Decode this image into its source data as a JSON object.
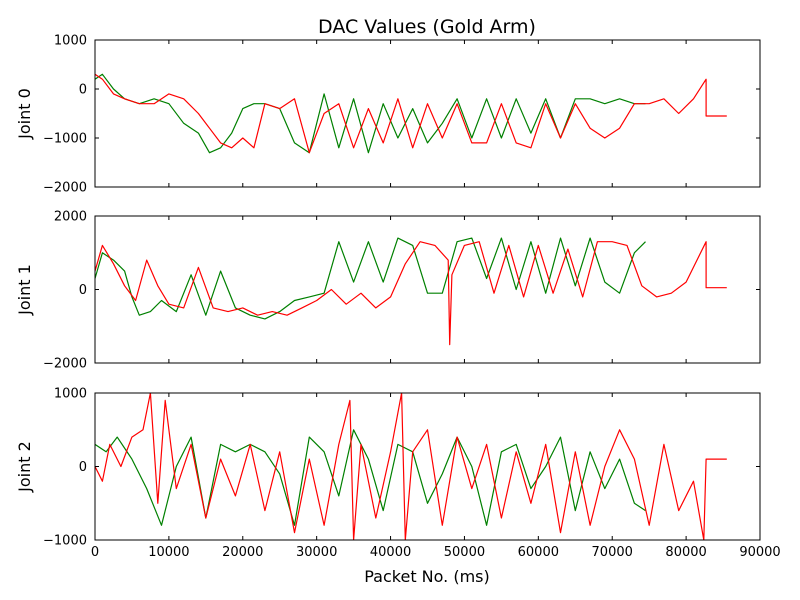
{
  "chart_data": {
    "type": "line",
    "title": "DAC Values (Gold Arm)",
    "xlabel": "Packet No. (ms)",
    "xlim": [
      0,
      90000
    ],
    "x_ticks": [
      0,
      10000,
      20000,
      30000,
      40000,
      50000,
      60000,
      70000,
      80000,
      90000
    ],
    "x_tick_labels": [
      "0",
      "10000",
      "20000",
      "30000",
      "40000",
      "50000",
      "60000",
      "70000",
      "80000",
      "90000"
    ],
    "series_colors": {
      "green": "#008000",
      "red": "#ff0000"
    },
    "panels": [
      {
        "ylabel": "Joint 0",
        "ylim": [
          -2000,
          1000
        ],
        "y_ticks": [
          1000,
          0,
          -1000,
          -2000
        ],
        "y_tick_labels": [
          "1000",
          "0",
          "−1000",
          "−2000"
        ],
        "series": [
          {
            "color": "#008000",
            "x": [
              0,
              1000,
              2500,
              4000,
              6000,
              8000,
              10000,
              12000,
              14000,
              15500,
              17000,
              18500,
              20000,
              21500,
              23000,
              25000,
              27000,
              29000,
              31000,
              33000,
              35000,
              37000,
              39000,
              41000,
              43000,
              45000,
              47000,
              49000,
              51000,
              53000,
              55000,
              57000,
              59000,
              61000,
              63000,
              65000,
              67000,
              69000,
              71000,
              73000,
              74500
            ],
            "y": [
              200,
              300,
              0,
              -200,
              -300,
              -200,
              -300,
              -700,
              -900,
              -1300,
              -1200,
              -900,
              -400,
              -300,
              -300,
              -400,
              -1100,
              -1300,
              -100,
              -1200,
              -200,
              -1300,
              -300,
              -1000,
              -400,
              -1100,
              -700,
              -200,
              -1000,
              -200,
              -1000,
              -200,
              -900,
              -200,
              -1000,
              -200,
              -200,
              -300,
              -200,
              -300,
              -300
            ]
          },
          {
            "color": "#ff0000",
            "x": [
              0,
              1000,
              2500,
              4000,
              6000,
              8000,
              10000,
              12000,
              14000,
              15500,
              17000,
              18500,
              20000,
              21500,
              23000,
              25000,
              27000,
              29000,
              31000,
              33000,
              35000,
              37000,
              39000,
              41000,
              43000,
              45000,
              47000,
              49000,
              51000,
              53000,
              55000,
              57000,
              59000,
              61000,
              63000,
              65000,
              67000,
              69000,
              71000,
              73000,
              75000,
              77000,
              79000,
              81000,
              82700,
              82700,
              85500
            ],
            "y": [
              300,
              200,
              -100,
              -200,
              -300,
              -300,
              -100,
              -200,
              -500,
              -800,
              -1100,
              -1200,
              -1000,
              -1200,
              -300,
              -400,
              -200,
              -1300,
              -500,
              -300,
              -1200,
              -400,
              -1100,
              -200,
              -1200,
              -300,
              -1000,
              -300,
              -1100,
              -1100,
              -300,
              -1100,
              -1200,
              -300,
              -1000,
              -300,
              -800,
              -1000,
              -800,
              -300,
              -300,
              -200,
              -500,
              -200,
              200,
              -550,
              -550
            ]
          }
        ]
      },
      {
        "ylabel": "Joint 1",
        "ylim": [
          -2000,
          2000
        ],
        "y_ticks": [
          2000,
          0,
          -2000
        ],
        "y_tick_labels": [
          "2000",
          "0",
          "−2000"
        ],
        "series": [
          {
            "color": "#008000",
            "x": [
              0,
              1000,
              2500,
              4000,
              5000,
              6000,
              7500,
              9000,
              11000,
              13000,
              15000,
              17000,
              19000,
              21000,
              23000,
              25000,
              27000,
              29000,
              31000,
              33000,
              35000,
              37000,
              39000,
              41000,
              43000,
              45000,
              47000,
              49000,
              51000,
              53000,
              55000,
              57000,
              59000,
              61000,
              63000,
              65000,
              67000,
              69000,
              71000,
              73000,
              74500
            ],
            "y": [
              300,
              1000,
              800,
              500,
              -200,
              -700,
              -600,
              -300,
              -600,
              400,
              -700,
              500,
              -500,
              -700,
              -800,
              -600,
              -300,
              -200,
              -100,
              1300,
              200,
              1300,
              200,
              1400,
              1200,
              -100,
              -100,
              1300,
              1400,
              300,
              1400,
              0,
              1300,
              -100,
              1400,
              100,
              1400,
              200,
              -100,
              1000,
              1300
            ]
          },
          {
            "color": "#ff0000",
            "x": [
              0,
              1000,
              2500,
              4000,
              5500,
              7000,
              8500,
              10000,
              12000,
              14000,
              16000,
              18000,
              20000,
              22000,
              24000,
              26000,
              28000,
              30000,
              32000,
              34000,
              36000,
              38000,
              40000,
              42000,
              44000,
              46000,
              47800,
              48000,
              48300,
              50000,
              52000,
              54000,
              56000,
              58000,
              60000,
              62000,
              64000,
              66000,
              68000,
              70000,
              72000,
              74000,
              76000,
              78000,
              80000,
              82700,
              82700,
              85500
            ],
            "y": [
              500,
              1200,
              700,
              100,
              -300,
              800,
              100,
              -400,
              -500,
              600,
              -500,
              -600,
              -500,
              -700,
              -600,
              -700,
              -500,
              -300,
              0,
              -400,
              -100,
              -500,
              -200,
              700,
              1300,
              1200,
              800,
              -1500,
              400,
              1200,
              1300,
              -100,
              1200,
              -200,
              1200,
              -100,
              1100,
              -200,
              1300,
              1300,
              1200,
              100,
              -200,
              -100,
              200,
              1300,
              50,
              50
            ]
          }
        ]
      },
      {
        "ylabel": "Joint 2",
        "ylim": [
          -1000,
          1000
        ],
        "y_ticks": [
          1000,
          0,
          -1000
        ],
        "y_tick_labels": [
          "1000",
          "0",
          "−1000"
        ],
        "series": [
          {
            "color": "#008000",
            "x": [
              0,
              1500,
              3000,
              5000,
              7000,
              9000,
              11000,
              13000,
              15000,
              17000,
              19000,
              21000,
              23000,
              25000,
              27000,
              29000,
              31000,
              33000,
              35000,
              37000,
              39000,
              41000,
              43000,
              45000,
              47000,
              49000,
              51000,
              53000,
              55000,
              57000,
              59000,
              61000,
              63000,
              65000,
              67000,
              69000,
              71000,
              73000,
              74500
            ],
            "y": [
              300,
              200,
              400,
              100,
              -300,
              -800,
              0,
              400,
              -700,
              300,
              200,
              300,
              200,
              -100,
              -800,
              400,
              200,
              -400,
              500,
              100,
              -600,
              300,
              200,
              -500,
              -100,
              400,
              0,
              -800,
              200,
              300,
              -300,
              0,
              400,
              -600,
              200,
              -300,
              100,
              -500,
              -600
            ]
          },
          {
            "color": "#ff0000",
            "x": [
              0,
              1000,
              2000,
              3500,
              5000,
              6500,
              7500,
              8500,
              9500,
              11000,
              13000,
              15000,
              17000,
              19000,
              21000,
              23000,
              25000,
              27000,
              29000,
              31000,
              33000,
              34500,
              35000,
              36000,
              38000,
              40000,
              41500,
              42000,
              43000,
              45000,
              47000,
              49000,
              51000,
              53000,
              55000,
              57000,
              59000,
              61000,
              63000,
              65000,
              67000,
              69000,
              71000,
              73000,
              75000,
              77000,
              79000,
              81000,
              82400,
              82700,
              85500
            ],
            "y": [
              0,
              -200,
              300,
              0,
              400,
              500,
              1000,
              -500,
              900,
              -300,
              300,
              -700,
              100,
              -400,
              300,
              -600,
              200,
              -900,
              100,
              -800,
              300,
              900,
              -1000,
              300,
              -700,
              200,
              1000,
              -1000,
              200,
              500,
              -800,
              400,
              -300,
              300,
              -700,
              200,
              -500,
              300,
              -900,
              200,
              -800,
              0,
              500,
              100,
              -800,
              300,
              -600,
              -200,
              -1000,
              100,
              100
            ]
          }
        ]
      }
    ]
  }
}
